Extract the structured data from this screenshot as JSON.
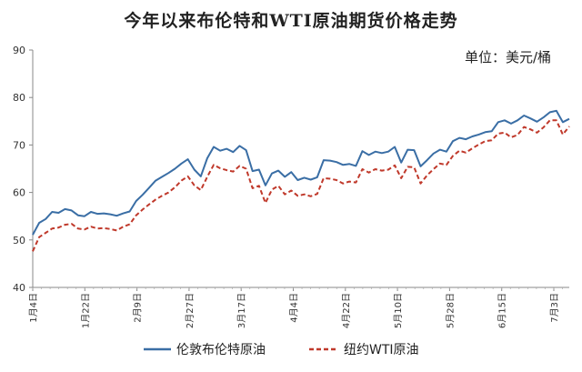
{
  "chart_data": {
    "type": "line",
    "title": "今年以来布伦特和WTI原油期货价格走势",
    "unit": "单位：美元/桶",
    "ylim": [
      40,
      90
    ],
    "yticks": [
      40,
      50,
      60,
      70,
      80,
      90
    ],
    "x_tick_labels": [
      "1月4日",
      "1月22日",
      "2月9日",
      "2月27日",
      "3月17日",
      "4月4日",
      "4月22日",
      "5月10日",
      "5月28日",
      "6月15日",
      "7月3日"
    ],
    "grid": false,
    "legend_position": "bottom",
    "series": [
      {
        "name": "伦敦布伦特原油",
        "color": "#3a6ea5",
        "style": "solid",
        "values": [
          51.1,
          53.6,
          54.4,
          55.9,
          55.7,
          56.5,
          56.2,
          55.2,
          55.0,
          55.9,
          55.5,
          55.6,
          55.4,
          55.1,
          55.6,
          56.0,
          58.2,
          59.5,
          61.0,
          62.5,
          63.3,
          64.1,
          65.0,
          66.1,
          67.0,
          64.8,
          63.4,
          67.2,
          69.6,
          68.8,
          69.2,
          68.5,
          69.8,
          68.9,
          64.5,
          64.8,
          61.5,
          64.0,
          64.6,
          63.3,
          64.3,
          62.6,
          63.1,
          62.7,
          63.2,
          66.8,
          66.7,
          66.4,
          65.8,
          66.0,
          65.6,
          68.7,
          67.9,
          68.6,
          68.3,
          68.6,
          69.6,
          66.3,
          69.0,
          68.9,
          65.5,
          66.8,
          68.2,
          69.0,
          68.6,
          70.8,
          71.5,
          71.2,
          71.8,
          72.2,
          72.7,
          72.9,
          74.8,
          75.2,
          74.5,
          75.2,
          76.2,
          75.6,
          74.9,
          75.8,
          76.9,
          77.2,
          74.8,
          75.5
        ]
      },
      {
        "name": "纽约WTI原油",
        "color": "#c0392b",
        "style": "dashed",
        "values": [
          47.6,
          50.6,
          51.5,
          52.4,
          52.6,
          53.2,
          53.4,
          52.4,
          52.2,
          52.8,
          52.4,
          52.5,
          52.3,
          52.0,
          52.8,
          53.3,
          55.2,
          56.4,
          57.5,
          58.5,
          59.3,
          60.0,
          61.1,
          62.5,
          63.4,
          61.5,
          60.5,
          63.3,
          65.8,
          65.1,
          64.7,
          64.4,
          65.6,
          65.0,
          60.9,
          61.4,
          57.8,
          60.6,
          61.4,
          59.6,
          60.4,
          59.3,
          59.6,
          59.2,
          59.7,
          63.0,
          62.9,
          62.6,
          61.9,
          62.3,
          62.1,
          64.9,
          64.2,
          64.9,
          64.6,
          64.8,
          65.7,
          63.0,
          65.4,
          65.3,
          61.9,
          63.6,
          64.9,
          66.1,
          65.8,
          67.7,
          68.8,
          68.4,
          69.3,
          70.1,
          70.8,
          71.0,
          72.4,
          72.6,
          71.6,
          72.1,
          73.8,
          73.3,
          72.6,
          73.7,
          75.2,
          75.2,
          72.2,
          73.9
        ]
      }
    ]
  }
}
